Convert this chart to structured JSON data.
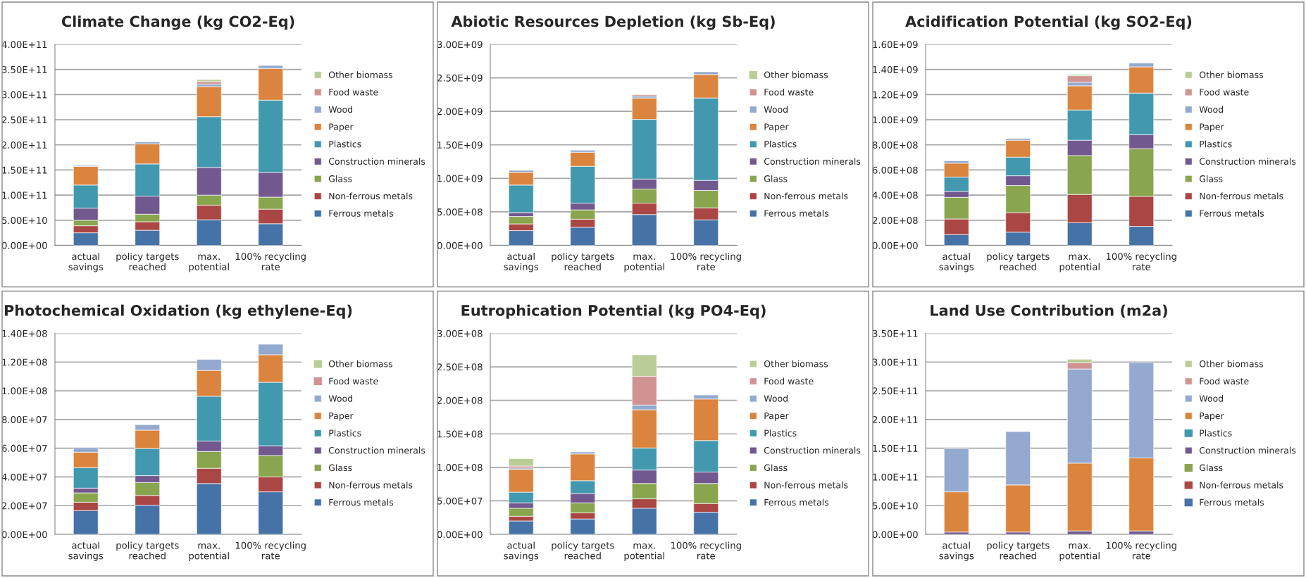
{
  "chart_data": [
    {
      "type": "bar",
      "stacked": true,
      "title": "Climate Change (kg CO2-Eq)",
      "categories": [
        "actual savings",
        "policy targets reached",
        "max. potential",
        "100% recycling rate"
      ],
      "grid": "y",
      "legend": "right",
      "ylim": [
        0,
        400000000000.0
      ],
      "yticks": [
        {
          "value": 0,
          "label": "0.00E+00"
        },
        {
          "value": 50000000000.0,
          "label": "5.00E+10"
        },
        {
          "value": 100000000000.0,
          "label": "1.00E+11"
        },
        {
          "value": 150000000000.0,
          "label": "1.50E+11"
        },
        {
          "value": 200000000000.0,
          "label": "2.00E+11"
        },
        {
          "value": 250000000000.0,
          "label": "2.50E+11"
        },
        {
          "value": 300000000000.0,
          "label": "3.00E+11"
        },
        {
          "value": 350000000000.0,
          "label": "3.50E+11"
        },
        {
          "value": 400000000000.0,
          "label": "4.00E+11"
        }
      ],
      "series": [
        {
          "name": "Ferrous metals",
          "color": "#4572a7",
          "values": [
            25000000000.0,
            30000000000.0,
            51000000000.0,
            43000000000.0
          ]
        },
        {
          "name": "Non-ferrous metals",
          "color": "#aa4643",
          "values": [
            14000000000.0,
            17000000000.0,
            29000000000.0,
            29000000000.0
          ]
        },
        {
          "name": "Glass",
          "color": "#89a54e",
          "values": [
            11000000000.0,
            15000000000.0,
            20000000000.0,
            24000000000.0
          ]
        },
        {
          "name": "Construction minerals",
          "color": "#71588f",
          "values": [
            24000000000.0,
            36000000000.0,
            55000000000.0,
            49000000000.0
          ]
        },
        {
          "name": "Plastics",
          "color": "#4198af",
          "values": [
            46000000000.0,
            64000000000.0,
            101000000000.0,
            144000000000.0
          ]
        },
        {
          "name": "Paper",
          "color": "#db843d",
          "values": [
            37000000000.0,
            40000000000.0,
            60000000000.0,
            63000000000.0
          ]
        },
        {
          "name": "Wood",
          "color": "#93a9cf",
          "values": [
            2000000000.0,
            4000000000.0,
            5000000000.0,
            6000000000.0
          ]
        },
        {
          "name": "Food waste",
          "color": "#d19392",
          "values": [
            null,
            null,
            5000000000.0,
            null
          ]
        },
        {
          "name": "Other biomass",
          "color": "#b9cd96",
          "values": [
            null,
            null,
            4000000000.0,
            null
          ]
        }
      ]
    },
    {
      "type": "bar",
      "stacked": true,
      "title": "Abiotic Resources Depletion (kg Sb-Eq)",
      "categories": [
        "actual savings",
        "policy targets reached",
        "max. potential",
        "100% recycling rate"
      ],
      "grid": "y",
      "legend": "right",
      "ylim": [
        0,
        3000000000.0
      ],
      "yticks": [
        {
          "value": 0,
          "label": "0.00E+00"
        },
        {
          "value": 500000000.0,
          "label": "5.00E+08"
        },
        {
          "value": 1000000000.0,
          "label": "1.00E+09"
        },
        {
          "value": 1500000000.0,
          "label": "1.50E+09"
        },
        {
          "value": 2000000000.0,
          "label": "2.00E+09"
        },
        {
          "value": 2500000000.0,
          "label": "2.50E+09"
        },
        {
          "value": 3000000000.0,
          "label": "3.00E+09"
        }
      ],
      "series": [
        {
          "name": "Ferrous metals",
          "color": "#4572a7",
          "values": [
            220000000.0,
            270000000.0,
            460000000.0,
            380000000.0
          ]
        },
        {
          "name": "Non-ferrous metals",
          "color": "#aa4643",
          "values": [
            100000000.0,
            120000000.0,
            170000000.0,
            180000000.0
          ]
        },
        {
          "name": "Glass",
          "color": "#89a54e",
          "values": [
            110000000.0,
            140000000.0,
            210000000.0,
            260000000.0
          ]
        },
        {
          "name": "Construction minerals",
          "color": "#71588f",
          "values": [
            60000000.0,
            100000000.0,
            150000000.0,
            150000000.0
          ]
        },
        {
          "name": "Plastics",
          "color": "#4198af",
          "values": [
            410000000.0,
            550000000.0,
            890000000.0,
            1230000000.0
          ]
        },
        {
          "name": "Paper",
          "color": "#db843d",
          "values": [
            190000000.0,
            210000000.0,
            320000000.0,
            350000000.0
          ]
        },
        {
          "name": "Wood",
          "color": "#93a9cf",
          "values": [
            30000000.0,
            30000000.0,
            30000000.0,
            40000000.0
          ]
        },
        {
          "name": "Food waste",
          "color": "#d19392",
          "values": [
            null,
            null,
            20000000.0,
            null
          ]
        },
        {
          "name": "Other biomass",
          "color": "#b9cd96",
          "values": [
            null,
            null,
            null,
            null
          ]
        }
      ]
    },
    {
      "type": "bar",
      "stacked": true,
      "title": "Acidification Potential (kg SO2-Eq)",
      "categories": [
        "actual savings",
        "policy targets reached",
        "max. potential",
        "100% recycling rate"
      ],
      "grid": "y",
      "legend": "right",
      "ylim": [
        0,
        1600000000.0
      ],
      "yticks": [
        {
          "value": 0,
          "label": "0.00E+00"
        },
        {
          "value": 200000000.0,
          "label": "2.00E+08"
        },
        {
          "value": 400000000.0,
          "label": "4.00E+08"
        },
        {
          "value": 600000000.0,
          "label": "6.00E+08"
        },
        {
          "value": 800000000.0,
          "label": "8.00E+08"
        },
        {
          "value": 1000000000.0,
          "label": "1.00E+09"
        },
        {
          "value": 1200000000.0,
          "label": "1.20E+09"
        },
        {
          "value": 1400000000.0,
          "label": "1.40E+09"
        },
        {
          "value": 1600000000.0,
          "label": "1.60E+09"
        }
      ],
      "series": [
        {
          "name": "Ferrous metals",
          "color": "#4572a7",
          "values": [
            86000000.0,
            105000000.0,
            180000000.0,
            151000000.0
          ]
        },
        {
          "name": "Non-ferrous metals",
          "color": "#aa4643",
          "values": [
            124000000.0,
            155000000.0,
            225000000.0,
            239000000.0
          ]
        },
        {
          "name": "Glass",
          "color": "#89a54e",
          "values": [
            172000000.0,
            216000000.0,
            310000000.0,
            379000000.0
          ]
        },
        {
          "name": "Construction minerals",
          "color": "#71588f",
          "values": [
            48000000.0,
            78000000.0,
            122000000.0,
            112000000.0
          ]
        },
        {
          "name": "Plastics",
          "color": "#4198af",
          "values": [
            113000000.0,
            148000000.0,
            241000000.0,
            331000000.0
          ]
        },
        {
          "name": "Paper",
          "color": "#db843d",
          "values": [
            111000000.0,
            135000000.0,
            192000000.0,
            209000000.0
          ]
        },
        {
          "name": "Wood",
          "color": "#93a9cf",
          "values": [
            19000000.0,
            14000000.0,
            28000000.0,
            30000000.0
          ]
        },
        {
          "name": "Food waste",
          "color": "#d19392",
          "values": [
            null,
            null,
            52000000.0,
            null
          ]
        },
        {
          "name": "Other biomass",
          "color": "#b9cd96",
          "values": [
            null,
            null,
            11000000.0,
            null
          ]
        }
      ]
    },
    {
      "type": "bar",
      "stacked": true,
      "title": "Photochemical Oxidation (kg ethylene-Eq)",
      "categories": [
        "actual savings",
        "policy targets reached",
        "max. potential",
        "100% recycling rate"
      ],
      "grid": "y",
      "legend": "right",
      "ylim": [
        0,
        140000000.0
      ],
      "yticks": [
        {
          "value": 0,
          "label": "0.00E+00"
        },
        {
          "value": 20000000.0,
          "label": "2.00E+07"
        },
        {
          "value": 40000000.0,
          "label": "4.00E+07"
        },
        {
          "value": 60000000.0,
          "label": "6.00E+07"
        },
        {
          "value": 80000000.0,
          "label": "8.00E+07"
        },
        {
          "value": 100000000.0,
          "label": "1.00E+08"
        },
        {
          "value": 120000000.0,
          "label": "1.20E+08"
        },
        {
          "value": 140000000.0,
          "label": "1.40E+08"
        }
      ],
      "series": [
        {
          "name": "Ferrous metals",
          "color": "#4572a7",
          "values": [
            16600000.0,
            20300000.0,
            35400000.0,
            29600000.0
          ]
        },
        {
          "name": "Non-ferrous metals",
          "color": "#aa4643",
          "values": [
            5800000.0,
            6800000.0,
            10600000.0,
            10400000.0
          ]
        },
        {
          "name": "Glass",
          "color": "#89a54e",
          "values": [
            6500000.0,
            9000000.0,
            11700000.0,
            14900000.0
          ]
        },
        {
          "name": "Construction minerals",
          "color": "#71588f",
          "values": [
            3300000.0,
            4800000.0,
            7300000.0,
            6800000.0
          ]
        },
        {
          "name": "Plastics",
          "color": "#4198af",
          "values": [
            14300000.0,
            18900000.0,
            31200000.0,
            44200000.0
          ]
        },
        {
          "name": "Paper",
          "color": "#db843d",
          "values": [
            10700000.0,
            12800000.0,
            18000000.0,
            19200000.0
          ]
        },
        {
          "name": "Wood",
          "color": "#93a9cf",
          "values": [
            3200000.0,
            3800000.0,
            7600000.0,
            7300000.0
          ]
        },
        {
          "name": "Food waste",
          "color": "#d19392",
          "values": [
            null,
            null,
            null,
            null
          ]
        },
        {
          "name": "Other biomass",
          "color": "#b9cd96",
          "values": [
            null,
            null,
            null,
            null
          ]
        }
      ]
    },
    {
      "type": "bar",
      "stacked": true,
      "title": "Eutrophication Potential (kg PO4-Eq)",
      "categories": [
        "actual savings",
        "policy targets reached",
        "max. potential",
        "100% recycling rate"
      ],
      "grid": "y",
      "legend": "right",
      "ylim": [
        0,
        300000000.0
      ],
      "yticks": [
        {
          "value": 0,
          "label": "0.00E+00"
        },
        {
          "value": 50000000.0,
          "label": "5.00E+07"
        },
        {
          "value": 100000000.0,
          "label": "1.00E+08"
        },
        {
          "value": 150000000.0,
          "label": "1.50E+08"
        },
        {
          "value": 200000000.0,
          "label": "2.00E+08"
        },
        {
          "value": 250000000.0,
          "label": "2.50E+08"
        },
        {
          "value": 300000000.0,
          "label": "3.00E+08"
        }
      ],
      "series": [
        {
          "name": "Ferrous metals",
          "color": "#4572a7",
          "values": [
            20000000.0,
            23000000.0,
            39000000.0,
            33000000.0
          ]
        },
        {
          "name": "Non-ferrous metals",
          "color": "#aa4643",
          "values": [
            7000000.0,
            9000000.0,
            14000000.0,
            13000000.0
          ]
        },
        {
          "name": "Glass",
          "color": "#89a54e",
          "values": [
            12000000.0,
            15000000.0,
            23000000.0,
            30000000.0
          ]
        },
        {
          "name": "Construction minerals",
          "color": "#71588f",
          "values": [
            8000000.0,
            14000000.0,
            20000000.0,
            17000000.0
          ]
        },
        {
          "name": "Plastics",
          "color": "#4198af",
          "values": [
            16000000.0,
            19000000.0,
            33000000.0,
            47000000.0
          ]
        },
        {
          "name": "Paper",
          "color": "#db843d",
          "values": [
            34000000.0,
            40000000.0,
            57000000.0,
            62000000.0
          ]
        },
        {
          "name": "Wood",
          "color": "#93a9cf",
          "values": [
            2000000.0,
            3000000.0,
            7000000.0,
            6000000.0
          ]
        },
        {
          "name": "Food waste",
          "color": "#d19392",
          "values": [
            3000000.0,
            null,
            43000000.0,
            null
          ]
        },
        {
          "name": "Other biomass",
          "color": "#b9cd96",
          "values": [
            11000000.0,
            null,
            32000000.0,
            null
          ]
        }
      ]
    },
    {
      "type": "bar",
      "stacked": true,
      "title": "Land Use Contribution (m2a)",
      "categories": [
        "actual savings",
        "policy targets reached",
        "max. potential",
        "100% recycling rate"
      ],
      "grid": "y",
      "legend": "right",
      "ylim": [
        0,
        350000000000.0
      ],
      "yticks": [
        {
          "value": 0,
          "label": "0.00E+00"
        },
        {
          "value": 50000000000.0,
          "label": "5.00E+10"
        },
        {
          "value": 100000000000.0,
          "label": "1.00E+11"
        },
        {
          "value": 150000000000.0,
          "label": "1.50E+11"
        },
        {
          "value": 200000000000.0,
          "label": "2.00E+11"
        },
        {
          "value": 250000000000.0,
          "label": "2.50E+11"
        },
        {
          "value": 300000000000.0,
          "label": "3.00E+11"
        },
        {
          "value": 350000000000.0,
          "label": "3.50E+11"
        }
      ],
      "series": [
        {
          "name": "Ferrous metals",
          "color": "#4572a7",
          "values": [
            null,
            null,
            null,
            null
          ]
        },
        {
          "name": "Non-ferrous metals",
          "color": "#aa4643",
          "values": [
            null,
            null,
            null,
            null
          ]
        },
        {
          "name": "Glass",
          "color": "#89a54e",
          "values": [
            null,
            null,
            null,
            null
          ]
        },
        {
          "name": "Construction minerals",
          "color": "#71588f",
          "values": [
            4000000000.0,
            4000000000.0,
            6000000000.0,
            6000000000.0
          ]
        },
        {
          "name": "Plastics",
          "color": "#4198af",
          "values": [
            null,
            null,
            null,
            null
          ]
        },
        {
          "name": "Paper",
          "color": "#db843d",
          "values": [
            70000000000.0,
            82000000000.0,
            118000000000.0,
            127000000000.0
          ]
        },
        {
          "name": "Wood",
          "color": "#93a9cf",
          "values": [
            75000000000.0,
            93000000000.0,
            164000000000.0,
            166000000000.0
          ]
        },
        {
          "name": "Food waste",
          "color": "#d19392",
          "values": [
            null,
            null,
            11000000000.0,
            null
          ]
        },
        {
          "name": "Other biomass",
          "color": "#b9cd96",
          "values": [
            null,
            null,
            6000000000.0,
            null
          ]
        }
      ]
    }
  ]
}
